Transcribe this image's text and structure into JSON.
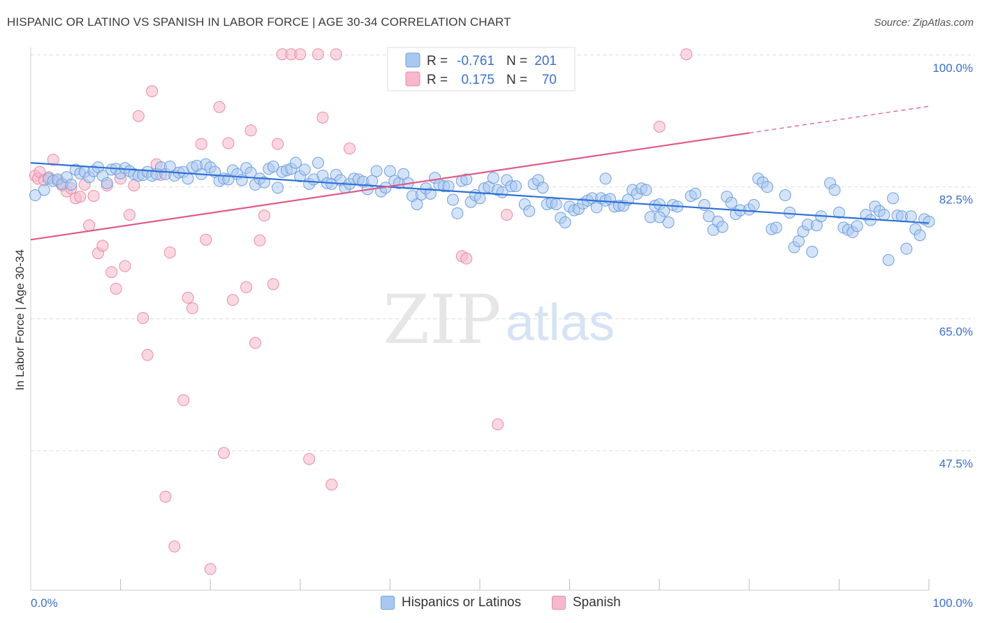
{
  "title": "HISPANIC OR LATINO VS SPANISH IN LABOR FORCE | AGE 30-34 CORRELATION CHART",
  "source": "Source: ZipAtlas.com",
  "watermark": {
    "zip": "ZIP",
    "atlas": "atlas"
  },
  "colors": {
    "blue_fill": "#a9c8f0",
    "blue_stroke": "#6f9fe0",
    "blue_line": "#2f72d6",
    "pink_fill": "#f6b8cb",
    "pink_stroke": "#eb8aa8",
    "pink_line": "#e05a8a",
    "axis_label": "#3b6fcc",
    "grid": "#dddddd"
  },
  "stats_legend": [
    {
      "r_label": "R =",
      "r_value": "-0.761",
      "n_label": "N =",
      "n_value": "201",
      "series": "blue"
    },
    {
      "r_label": "R =",
      "r_value": "0.175",
      "n_label": "N =",
      "n_value": "70",
      "series": "pink"
    }
  ],
  "chart_data": {
    "type": "scatter",
    "title": "HISPANIC OR LATINO VS SPANISH IN LABOR FORCE | AGE 30-34 CORRELATION CHART",
    "xlabel": "",
    "ylabel": "In Labor Force | Age 30-34",
    "xlim": [
      0,
      100
    ],
    "ylim": [
      29,
      101
    ],
    "x_tick_labels": [
      "0.0%",
      "100.0%"
    ],
    "y_ticks": [
      100.0,
      82.5,
      65.0,
      47.5
    ],
    "y_tick_labels": [
      "100.0%",
      "82.5%",
      "65.0%",
      "47.5%"
    ],
    "grid": true,
    "legend_position": "bottom-center",
    "series": [
      {
        "name": "Hispanics or Latinos",
        "color": "#6f9fe0",
        "r": -0.761,
        "n": 201,
        "trend": {
          "x": [
            0,
            100
          ],
          "y": [
            85.7,
            77.7
          ],
          "style": "solid"
        },
        "points": [
          [
            0.5,
            81.4
          ],
          [
            1.5,
            82.1
          ],
          [
            2.0,
            83.6
          ],
          [
            2.5,
            83.3
          ],
          [
            3.0,
            83.5
          ],
          [
            3.5,
            82.9
          ],
          [
            4.0,
            83.8
          ],
          [
            4.5,
            82.8
          ],
          [
            5.0,
            84.8
          ],
          [
            5.5,
            84.3
          ],
          [
            6.0,
            84.5
          ],
          [
            6.5,
            83.8
          ],
          [
            7.0,
            84.6
          ],
          [
            7.5,
            85.1
          ],
          [
            8.0,
            84.0
          ],
          [
            8.5,
            83.0
          ],
          [
            9.0,
            84.8
          ],
          [
            9.5,
            84.9
          ],
          [
            10.0,
            84.3
          ],
          [
            10.5,
            85.0
          ],
          [
            11.0,
            84.6
          ],
          [
            11.5,
            84.2
          ],
          [
            12.0,
            84.0
          ],
          [
            12.5,
            84.1
          ],
          [
            13.0,
            84.5
          ],
          [
            13.5,
            84.0
          ],
          [
            14.0,
            84.2
          ],
          [
            14.5,
            85.1
          ],
          [
            15.0,
            84.2
          ],
          [
            15.5,
            85.2
          ],
          [
            16.0,
            84.0
          ],
          [
            16.5,
            84.4
          ],
          [
            17.0,
            84.5
          ],
          [
            17.5,
            83.6
          ],
          [
            18.0,
            85.1
          ],
          [
            18.5,
            85.3
          ],
          [
            19.0,
            84.2
          ],
          [
            19.5,
            85.5
          ],
          [
            20.0,
            85.1
          ],
          [
            20.5,
            84.5
          ],
          [
            21.0,
            83.3
          ],
          [
            21.5,
            83.6
          ],
          [
            22.0,
            83.5
          ],
          [
            22.5,
            84.7
          ],
          [
            23.0,
            84.2
          ],
          [
            23.5,
            83.4
          ],
          [
            24.0,
            85.0
          ],
          [
            24.5,
            84.4
          ],
          [
            25.0,
            82.8
          ],
          [
            25.5,
            83.6
          ],
          [
            26.0,
            83.1
          ],
          [
            26.5,
            84.9
          ],
          [
            27.0,
            85.2
          ],
          [
            27.5,
            82.4
          ],
          [
            28.0,
            84.5
          ],
          [
            28.5,
            84.7
          ],
          [
            29.0,
            84.9
          ],
          [
            29.5,
            85.7
          ],
          [
            30.0,
            83.9
          ],
          [
            30.5,
            84.8
          ],
          [
            31.0,
            82.9
          ],
          [
            31.5,
            83.5
          ],
          [
            32.0,
            85.7
          ],
          [
            32.5,
            84.0
          ],
          [
            33.0,
            83.0
          ],
          [
            33.5,
            82.9
          ],
          [
            34.0,
            84.1
          ],
          [
            34.5,
            83.4
          ],
          [
            35.0,
            82.4
          ],
          [
            35.5,
            82.9
          ],
          [
            36.0,
            83.6
          ],
          [
            36.5,
            83.5
          ],
          [
            37.0,
            83.2
          ],
          [
            37.5,
            82.2
          ],
          [
            38.0,
            83.3
          ],
          [
            38.5,
            84.6
          ],
          [
            39.0,
            81.9
          ],
          [
            39.5,
            82.4
          ],
          [
            40.0,
            84.6
          ],
          [
            40.5,
            83.3
          ],
          [
            41.0,
            83.0
          ],
          [
            41.5,
            84.2
          ],
          [
            42.0,
            83.0
          ],
          [
            42.5,
            81.3
          ],
          [
            43.0,
            80.2
          ],
          [
            43.5,
            81.5
          ],
          [
            44.0,
            82.3
          ],
          [
            44.5,
            81.6
          ],
          [
            45.0,
            83.7
          ],
          [
            45.5,
            82.8
          ],
          [
            46.0,
            82.6
          ],
          [
            46.5,
            82.6
          ],
          [
            47.0,
            80.8
          ],
          [
            47.5,
            79.0
          ],
          [
            48.0,
            83.3
          ],
          [
            48.5,
            83.5
          ],
          [
            49.0,
            80.5
          ],
          [
            49.5,
            81.4
          ],
          [
            50.0,
            81.0
          ],
          [
            50.5,
            82.3
          ],
          [
            51.0,
            82.5
          ],
          [
            51.5,
            83.7
          ],
          [
            52.0,
            82.1
          ],
          [
            52.5,
            81.8
          ],
          [
            53.0,
            83.4
          ],
          [
            53.5,
            82.6
          ],
          [
            54.0,
            82.6
          ],
          [
            55.0,
            80.2
          ],
          [
            55.5,
            79.3
          ],
          [
            56.0,
            82.9
          ],
          [
            56.5,
            83.4
          ],
          [
            57.0,
            82.4
          ],
          [
            57.5,
            80.2
          ],
          [
            58.0,
            80.4
          ],
          [
            58.5,
            80.2
          ],
          [
            59.0,
            78.4
          ],
          [
            59.5,
            77.8
          ],
          [
            60.0,
            79.9
          ],
          [
            60.5,
            79.4
          ],
          [
            61.0,
            79.6
          ],
          [
            61.5,
            80.3
          ],
          [
            62.0,
            80.7
          ],
          [
            62.5,
            81.0
          ],
          [
            63.0,
            79.8
          ],
          [
            63.5,
            81.0
          ],
          [
            64.0,
            80.7
          ],
          [
            64.5,
            80.9
          ],
          [
            65.0,
            79.9
          ],
          [
            65.5,
            80.0
          ],
          [
            66.0,
            80.0
          ],
          [
            66.5,
            80.8
          ],
          [
            67.0,
            82.1
          ],
          [
            67.5,
            81.6
          ],
          [
            68.0,
            82.3
          ],
          [
            68.5,
            82.1
          ],
          [
            69.0,
            78.5
          ],
          [
            69.5,
            80.0
          ],
          [
            70.0,
            80.2
          ],
          [
            70.5,
            79.3
          ],
          [
            71.0,
            77.8
          ],
          [
            71.5,
            80.1
          ],
          [
            72.0,
            79.9
          ],
          [
            73.5,
            81.3
          ],
          [
            74.0,
            81.6
          ],
          [
            75.0,
            80.1
          ],
          [
            75.5,
            78.6
          ],
          [
            76.0,
            76.8
          ],
          [
            76.5,
            77.9
          ],
          [
            77.0,
            77.2
          ],
          [
            77.5,
            81.2
          ],
          [
            78.0,
            80.4
          ],
          [
            78.5,
            78.9
          ],
          [
            79.0,
            79.4
          ],
          [
            80.0,
            79.5
          ],
          [
            80.5,
            80.1
          ],
          [
            81.0,
            83.6
          ],
          [
            81.5,
            83.1
          ],
          [
            82.0,
            82.5
          ],
          [
            82.5,
            76.9
          ],
          [
            83.0,
            77.1
          ],
          [
            84.0,
            81.4
          ],
          [
            84.5,
            79.1
          ],
          [
            85.0,
            74.5
          ],
          [
            85.5,
            75.3
          ],
          [
            86.0,
            76.6
          ],
          [
            86.5,
            77.5
          ],
          [
            87.0,
            73.9
          ],
          [
            87.5,
            77.4
          ],
          [
            88.0,
            78.6
          ],
          [
            89.0,
            83.0
          ],
          [
            89.5,
            82.1
          ],
          [
            90.0,
            79.1
          ],
          [
            90.5,
            77.1
          ],
          [
            91.0,
            76.8
          ],
          [
            91.5,
            76.5
          ],
          [
            92.0,
            77.3
          ],
          [
            93.0,
            78.8
          ],
          [
            93.5,
            78.1
          ],
          [
            94.0,
            79.9
          ],
          [
            94.5,
            79.3
          ],
          [
            95.0,
            78.8
          ],
          [
            95.5,
            72.8
          ],
          [
            96.0,
            81.0
          ],
          [
            96.5,
            78.7
          ],
          [
            97.0,
            78.6
          ],
          [
            97.5,
            74.3
          ],
          [
            98.0,
            78.6
          ],
          [
            98.5,
            76.9
          ],
          [
            99.0,
            76.1
          ],
          [
            99.5,
            78.2
          ],
          [
            100.0,
            77.9
          ],
          [
            64.0,
            83.6
          ],
          [
            70.0,
            78.5
          ]
        ]
      },
      {
        "name": "Spanish",
        "color": "#eb8aa8",
        "r": 0.175,
        "n": 70,
        "trend": {
          "x": [
            0,
            100
          ],
          "y": [
            75.5,
            93.2
          ],
          "solid_until": 80
        },
        "points": [
          [
            0.5,
            84.0
          ],
          [
            0.8,
            83.6
          ],
          [
            1.0,
            84.5
          ],
          [
            1.5,
            83.4
          ],
          [
            2.0,
            83.8
          ],
          [
            2.5,
            86.1
          ],
          [
            3.0,
            83.3
          ],
          [
            3.5,
            82.7
          ],
          [
            4.0,
            81.9
          ],
          [
            4.5,
            82.3
          ],
          [
            5.0,
            81.0
          ],
          [
            5.5,
            81.2
          ],
          [
            6.0,
            82.8
          ],
          [
            6.5,
            77.4
          ],
          [
            7.0,
            81.3
          ],
          [
            7.5,
            73.7
          ],
          [
            8.0,
            74.7
          ],
          [
            8.5,
            82.7
          ],
          [
            9.0,
            71.2
          ],
          [
            9.5,
            69.0
          ],
          [
            10.0,
            83.6
          ],
          [
            10.5,
            72.0
          ],
          [
            11.0,
            78.8
          ],
          [
            11.5,
            82.7
          ],
          [
            12.0,
            91.9
          ],
          [
            12.5,
            65.1
          ],
          [
            13.0,
            60.2
          ],
          [
            13.5,
            95.2
          ],
          [
            14.0,
            85.5
          ],
          [
            14.5,
            84.1
          ],
          [
            15.0,
            41.4
          ],
          [
            15.5,
            73.8
          ],
          [
            16.0,
            34.8
          ],
          [
            17.0,
            54.2
          ],
          [
            17.5,
            67.8
          ],
          [
            18.0,
            66.4
          ],
          [
            19.0,
            88.2
          ],
          [
            19.5,
            75.5
          ],
          [
            20.0,
            31.8
          ],
          [
            21.0,
            93.1
          ],
          [
            21.5,
            47.2
          ],
          [
            22.0,
            88.3
          ],
          [
            22.5,
            67.5
          ],
          [
            24.0,
            69.2
          ],
          [
            24.5,
            90.0
          ],
          [
            25.0,
            61.8
          ],
          [
            25.5,
            75.4
          ],
          [
            26.0,
            78.7
          ],
          [
            27.0,
            69.6
          ],
          [
            27.5,
            88.2
          ],
          [
            28.0,
            100.1
          ],
          [
            29.0,
            100.1
          ],
          [
            30.0,
            100.1
          ],
          [
            31.0,
            46.4
          ],
          [
            32.0,
            100.1
          ],
          [
            32.5,
            91.7
          ],
          [
            33.5,
            43.0
          ],
          [
            34.0,
            100.1
          ],
          [
            35.5,
            87.6
          ],
          [
            45.0,
            100.1
          ],
          [
            46.0,
            100.1
          ],
          [
            48.0,
            73.3
          ],
          [
            48.5,
            73.0
          ],
          [
            52.0,
            51.0
          ],
          [
            53.0,
            78.8
          ],
          [
            55.0,
            100.1
          ],
          [
            56.0,
            100.1
          ],
          [
            58.0,
            100.1
          ],
          [
            70.0,
            90.5
          ],
          [
            73.0,
            100.1
          ]
        ]
      }
    ]
  },
  "legend_bottom": [
    {
      "label": "Hispanics or Latinos",
      "series": "blue"
    },
    {
      "label": "Spanish",
      "series": "pink"
    }
  ]
}
